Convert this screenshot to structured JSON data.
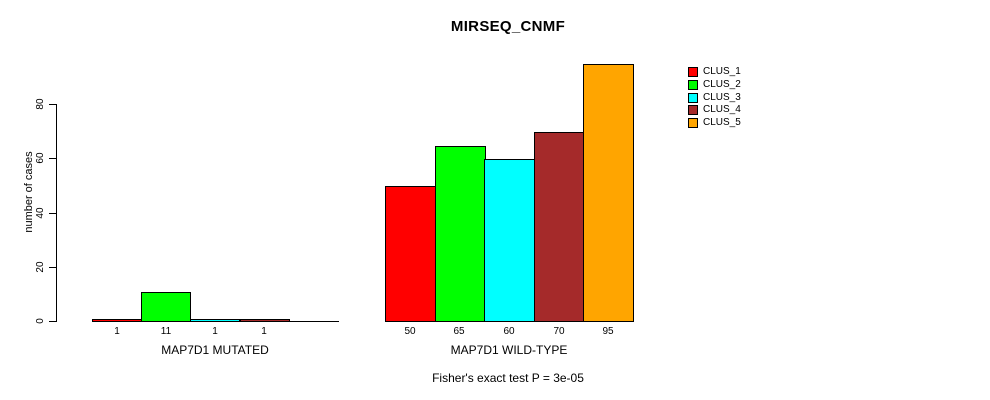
{
  "chart_data": {
    "type": "bar",
    "title": "MIRSEQ_CNMF",
    "ylabel": "number of cases",
    "subtitle": "Fisher's exact test P = 3e-05",
    "yticks": [
      0,
      20,
      40,
      60,
      80
    ],
    "ylim": [
      0,
      97
    ],
    "grid": false,
    "legend_position": "right",
    "series": [
      {
        "name": "CLUS_1",
        "color": "#FF0000"
      },
      {
        "name": "CLUS_2",
        "color": "#00FF00"
      },
      {
        "name": "CLUS_3",
        "color": "#00FFFF"
      },
      {
        "name": "CLUS_4",
        "color": "#A52A2A"
      },
      {
        "name": "CLUS_5",
        "color": "#FFA500"
      }
    ],
    "groups": [
      {
        "label": "MAP7D1 MUTATED",
        "values": [
          1,
          11,
          1,
          1,
          0
        ],
        "bar_labels": [
          "1",
          "11",
          "1",
          "1",
          ""
        ]
      },
      {
        "label": "MAP7D1 WILD-TYPE",
        "values": [
          50,
          65,
          60,
          70,
          95
        ],
        "bar_labels": [
          "50",
          "65",
          "60",
          "70",
          "95"
        ]
      }
    ]
  },
  "colors": {
    "background": "#FFFFFF",
    "axis": "#000000",
    "text": "#000000"
  }
}
